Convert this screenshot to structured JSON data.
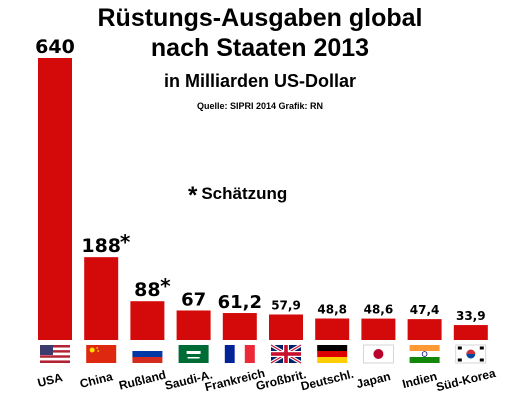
{
  "title_line1": "Rüstungs-Ausgaben global",
  "title_line2": "nach Staaten 2013",
  "subtitle": "in Milliarden US-Dollar",
  "source": "Quelle: SIPRI 2014   Grafik: RN",
  "note_star": "*",
  "note_text": "Schätzung",
  "colors": {
    "bar": "#d40a0a",
    "text": "#000000"
  },
  "chart_data": {
    "type": "bar",
    "title": "Rüstungs-Ausgaben global nach Staaten 2013",
    "ylabel": "",
    "categories": [
      "USA",
      "China",
      "Rußland",
      "Saudi-A.",
      "Frankreich",
      "Großbrit.",
      "Deutschl.",
      "Japan",
      "Indien",
      "Süd-Korea"
    ],
    "values": [
      640,
      188,
      88,
      67,
      61.2,
      57.9,
      48.8,
      48.6,
      47.4,
      33.9
    ],
    "value_labels": [
      "640",
      "188",
      "88",
      "67",
      "61,2",
      "57,9",
      "48,8",
      "48,6",
      "47,4",
      "33,9"
    ],
    "estimated": [
      false,
      true,
      true,
      false,
      false,
      false,
      false,
      false,
      false,
      false
    ],
    "flags": [
      "flag-usa-icon",
      "flag-china-icon",
      "flag-russia-icon",
      "flag-saudi-arabia-icon",
      "flag-france-icon",
      "flag-uk-icon",
      "flag-germany-icon",
      "flag-japan-icon",
      "flag-india-icon",
      "flag-south-korea-icon"
    ],
    "ylim": [
      0,
      640
    ],
    "grid": false,
    "legend": "none"
  }
}
